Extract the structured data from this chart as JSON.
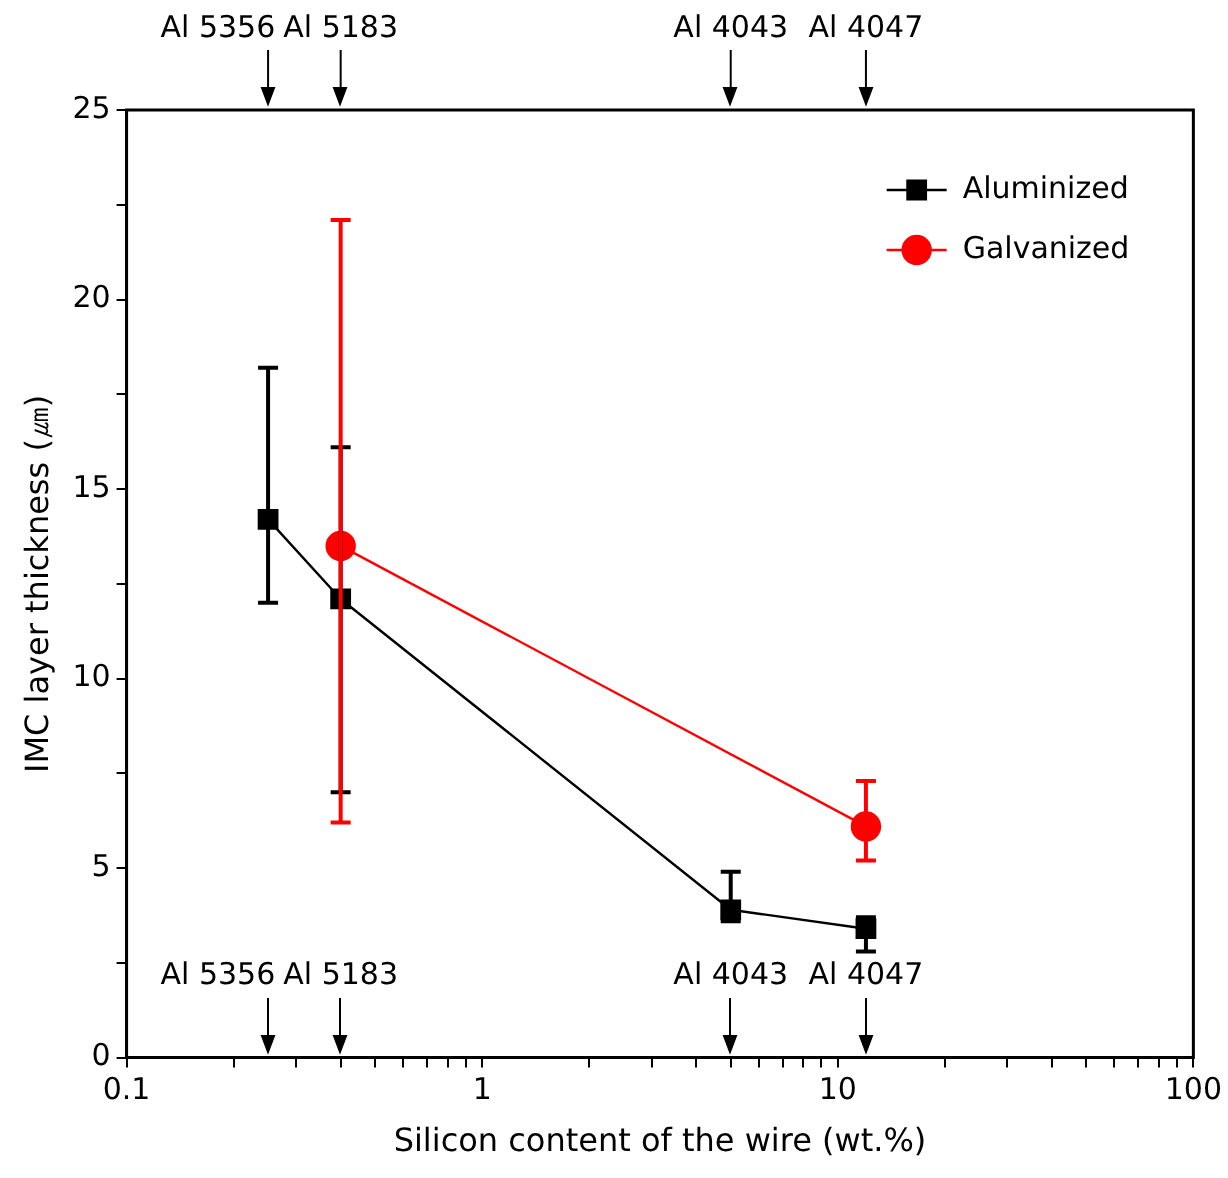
{
  "chart_data": {
    "type": "line",
    "xlabel": "Silicon content of the wire (wt.%)",
    "ylabel": "IMC layer thickness (㎛)",
    "log": "x",
    "xlim": [
      0.1,
      100
    ],
    "xticks": [
      0.1,
      {
        "value": 0.2,
        "label": null
      },
      {
        "value": 0.3,
        "label": null
      },
      {
        "value": 0.4,
        "label": null
      },
      {
        "value": 0.5,
        "label": null
      },
      {
        "value": 0.6,
        "label": null
      },
      {
        "value": 0.7,
        "label": null
      },
      {
        "value": 0.8,
        "label": null
      },
      {
        "value": 0.9,
        "label": null
      },
      1,
      {
        "value": 2,
        "label": null
      },
      {
        "value": 3,
        "label": null
      },
      {
        "value": 4,
        "label": null
      },
      {
        "value": 5,
        "label": null
      },
      {
        "value": 6,
        "label": null
      },
      {
        "value": 7,
        "label": null
      },
      {
        "value": 8,
        "label": null
      },
      {
        "value": 9,
        "label": null
      },
      10,
      {
        "value": 20,
        "label": null
      },
      {
        "value": 30,
        "label": null
      },
      {
        "value": 40,
        "label": null
      },
      {
        "value": 50,
        "label": null
      },
      {
        "value": 60,
        "label": null
      },
      {
        "value": 70,
        "label": null
      },
      {
        "value": 80,
        "label": null
      },
      {
        "value": 90,
        "label": null
      },
      100
    ],
    "ylim": [
      0,
      25
    ],
    "yticks": [
      0,
      {
        "value": 2.5,
        "label": null
      },
      5,
      {
        "value": 7.5,
        "label": null
      },
      10,
      {
        "value": 12.5,
        "label": null
      },
      15,
      {
        "value": 17.5,
        "label": null
      },
      20,
      {
        "value": 22.5,
        "label": null
      },
      25
    ],
    "grid": false,
    "legend": "top right",
    "series": [
      {
        "name": "Aluminized",
        "color": "#000000",
        "marker": "square",
        "x": [
          0.25,
          0.4,
          5,
          12
        ],
        "values": [
          14.2,
          12.1,
          3.9,
          3.4
        ],
        "errors": [
          [
            12.0,
            18.2
          ],
          [
            7.0,
            16.1
          ],
          [
            3.6,
            4.9
          ],
          [
            2.8,
            3.7
          ]
        ]
      },
      {
        "name": "Galvanized",
        "color": "#ff0000",
        "marker": "circle",
        "x": [
          0.4,
          12
        ],
        "values": [
          13.5,
          6.1
        ],
        "errors": [
          [
            6.2,
            22.1
          ],
          [
            5.2,
            7.3
          ]
        ]
      }
    ],
    "ref_lines": [
      {
        "axis": "x",
        "value": 0.25,
        "label": "Al 5356"
      },
      {
        "axis": "x",
        "value": 0.4,
        "label": "Al 5183"
      },
      {
        "axis": "x",
        "value": 5,
        "label": "Al 4043"
      },
      {
        "axis": "x",
        "value": 12,
        "label": "Al 4047"
      },
      {
        "axis": "x",
        "value": 0.25,
        "label": "Al 5356"
      },
      {
        "axis": "x",
        "value": 0.4,
        "label": "Al 5183"
      },
      {
        "axis": "x",
        "value": 5,
        "label": "Al 4043"
      },
      {
        "axis": "x",
        "value": 12,
        "label": "Al 4047"
      }
    ]
  }
}
